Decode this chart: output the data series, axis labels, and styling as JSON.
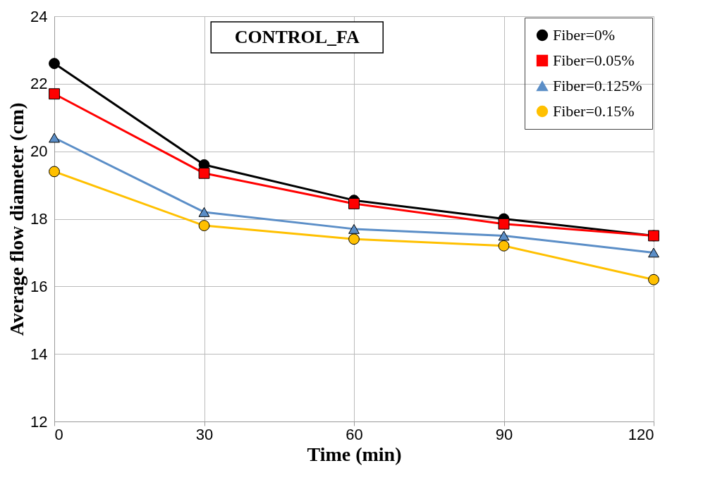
{
  "chart_data": {
    "type": "line",
    "xlabel": "Time (min)",
    "ylabel": "Average flow diameter (cm)",
    "annotations": [
      "CONTROL_FA"
    ],
    "x": [
      0,
      30,
      60,
      90,
      120
    ],
    "series": [
      {
        "name": "Fiber=0%",
        "color": "#000000",
        "marker": "circle",
        "values": [
          22.6,
          19.6,
          18.55,
          18.0,
          17.5
        ]
      },
      {
        "name": "Fiber=0.05%",
        "color": "#ff0000",
        "marker": "square",
        "values": [
          21.7,
          19.35,
          18.45,
          17.85,
          17.5
        ]
      },
      {
        "name": "Fiber=0.125%",
        "color": "#5b8ec7",
        "marker": "triangle",
        "values": [
          20.4,
          18.2,
          17.7,
          17.5,
          17.0
        ]
      },
      {
        "name": "Fiber=0.15%",
        "color": "#ffc000",
        "marker": "circle",
        "values": [
          19.4,
          17.8,
          17.4,
          17.2,
          16.2
        ]
      }
    ],
    "xlim": [
      0,
      120
    ],
    "xticks": [
      0,
      30,
      60,
      90,
      120
    ],
    "ylim": [
      12,
      24
    ],
    "yticks": [
      12,
      14,
      16,
      18,
      20,
      22,
      24
    ],
    "grid": true,
    "legend": "top right",
    "line_style": "solid"
  }
}
